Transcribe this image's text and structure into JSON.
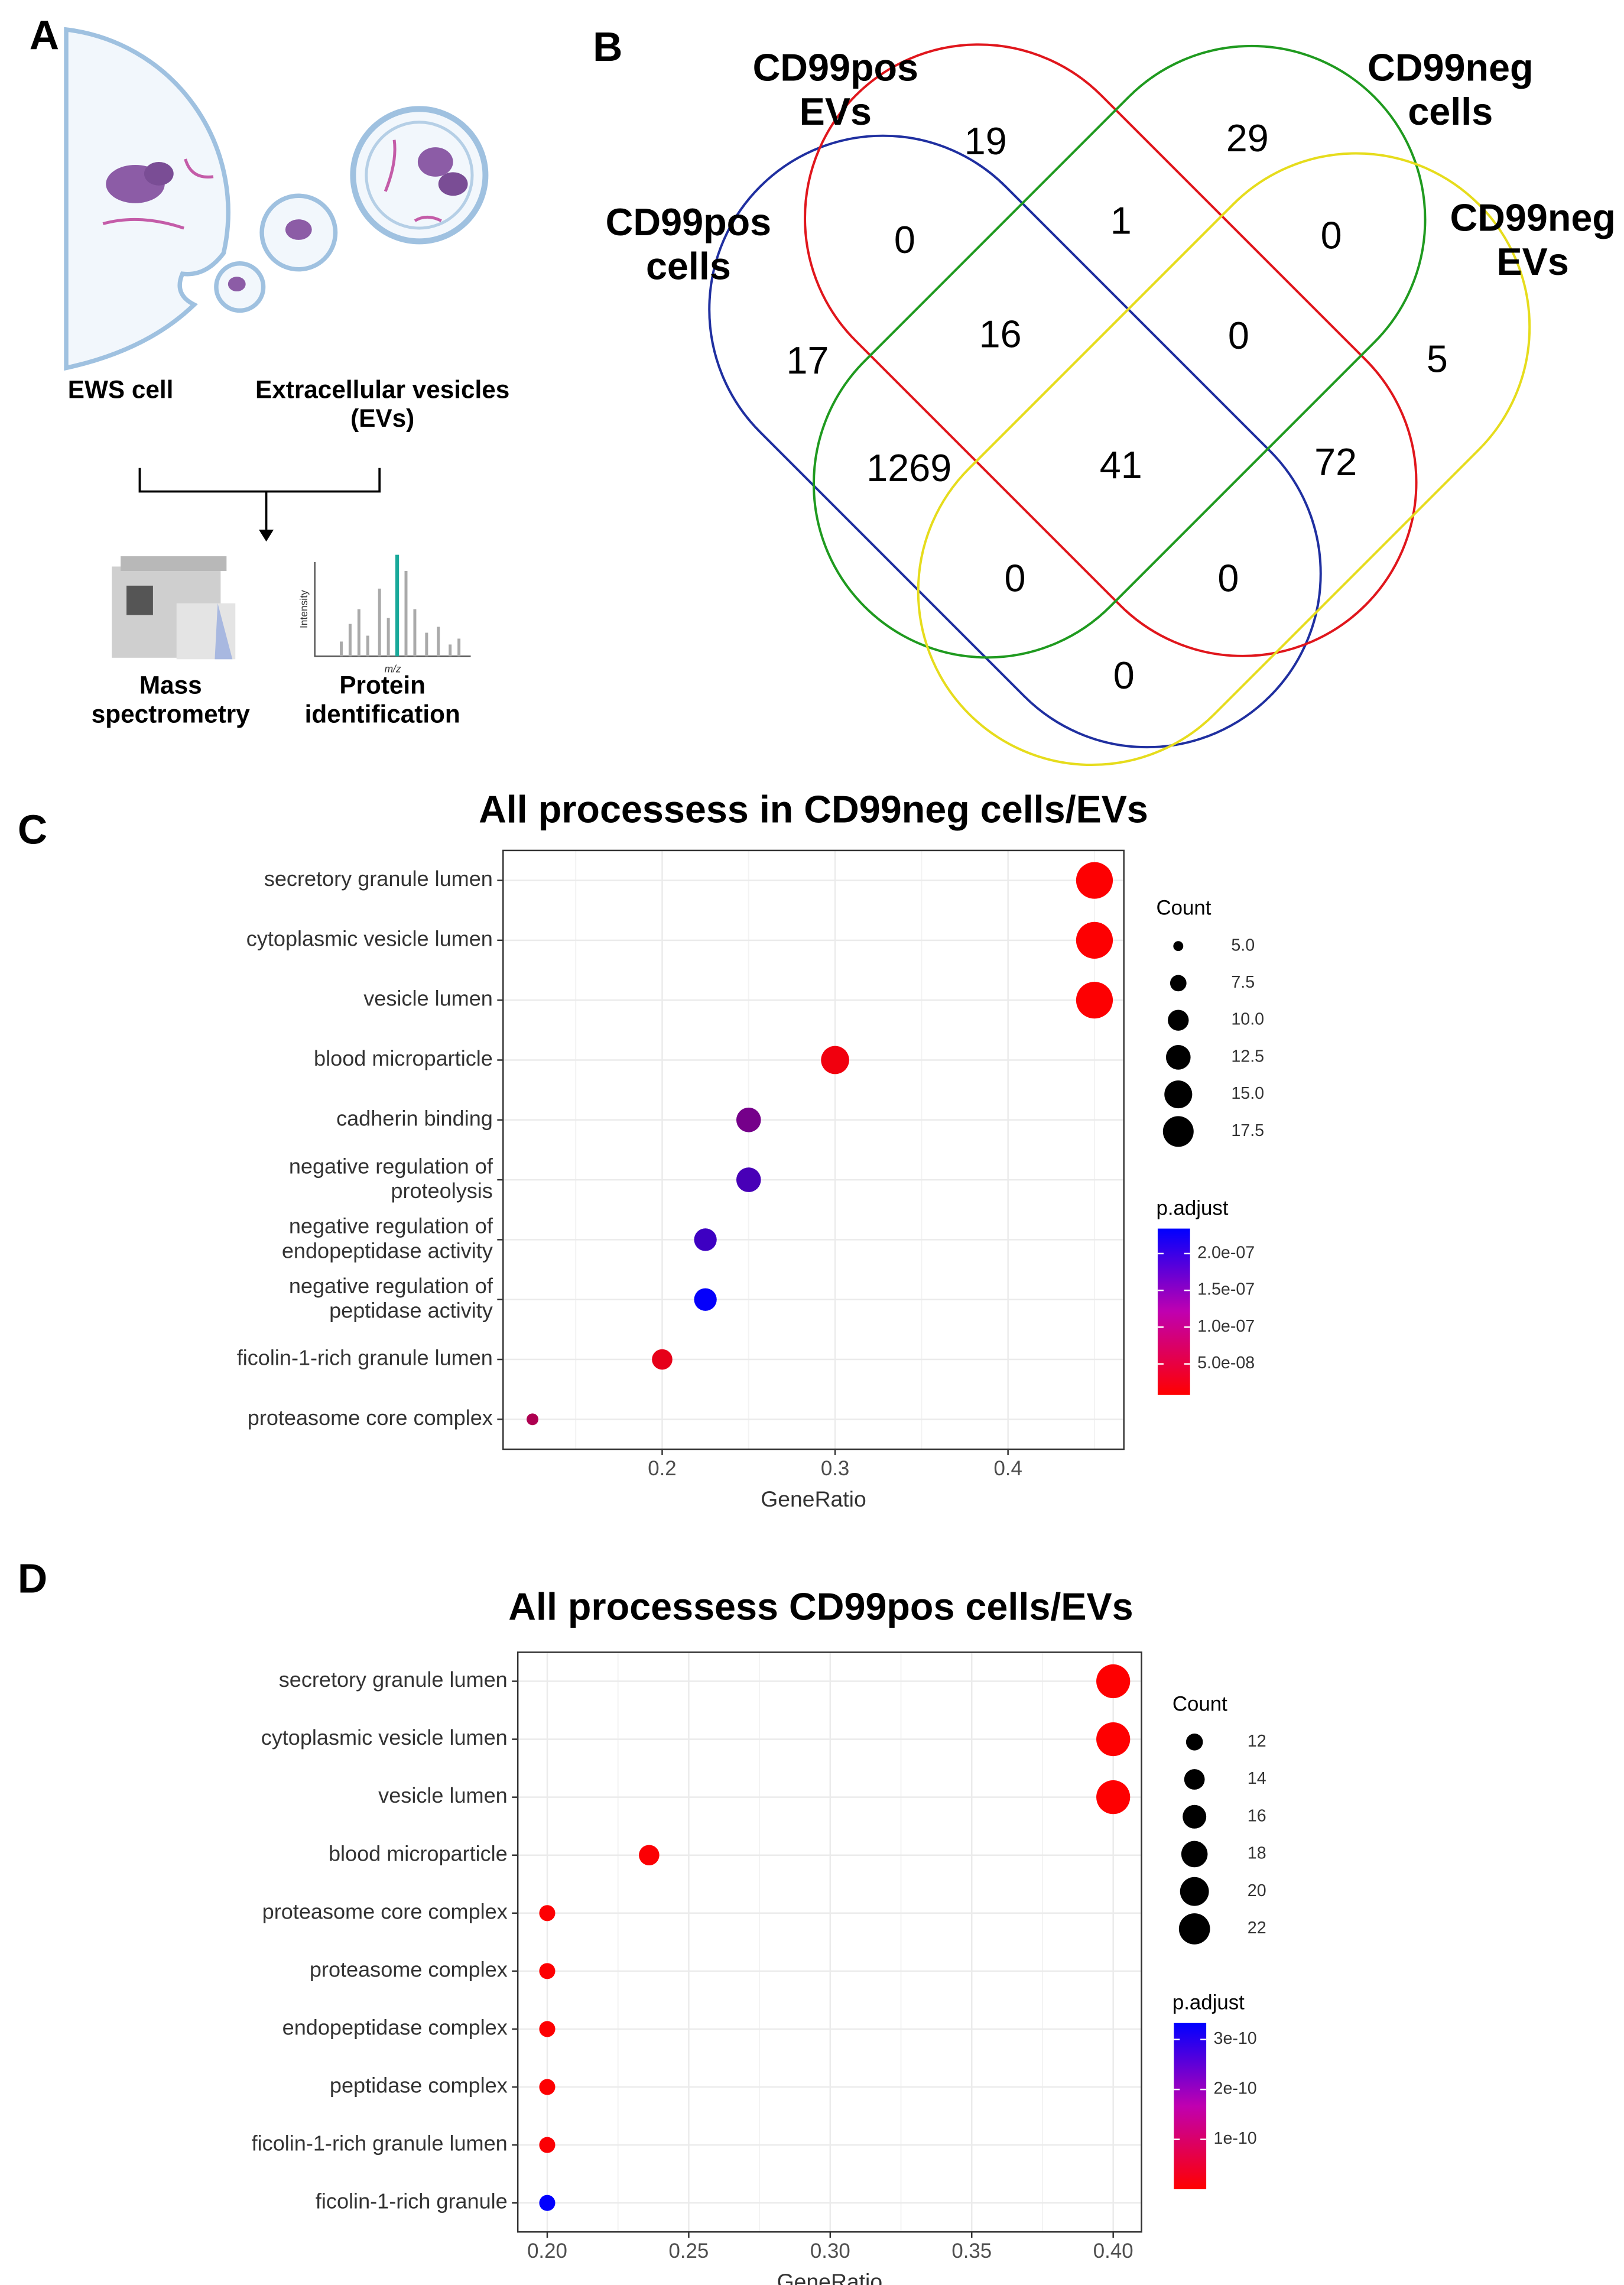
{
  "panel_labels": [
    "A",
    "B",
    "C",
    "D"
  ],
  "schematic": {
    "cell_label": "EWS cell",
    "ev_label": "Extracellular vesicles\n(EVs)",
    "method_labels": [
      "Mass\nspectrometry",
      "Protein\nidentification"
    ],
    "y_axis_label": "Intensity",
    "x_axis_label": "m/z"
  },
  "chart_data": [
    {
      "type": "venn",
      "sets": [
        {
          "name": "CD99pos\ncells",
          "color": "#1f2fa0"
        },
        {
          "name": "CD99pos\nEVs",
          "color": "#e0161c"
        },
        {
          "name": "CD99neg\ncells",
          "color": "#1f9a1f"
        },
        {
          "name": "CD99neg\nEVs",
          "color": "#e6dc1c"
        }
      ],
      "values": [
        19,
        29,
        0,
        1,
        0,
        17,
        16,
        0,
        5,
        1269,
        41,
        72,
        0,
        0,
        0
      ]
    },
    {
      "type": "dot",
      "title": "All processess in CD99neg cells/EVs",
      "xlabel": "GeneRatio",
      "categories": [
        "secretory granule lumen",
        "cytoplasmic vesicle lumen",
        "vesicle lumen",
        "blood microparticle",
        "cadherin binding",
        "negative regulation of\nproteolysis",
        "negative regulation of\nendopeptidase activity",
        "negative regulation of\npeptidase activity",
        "ficolin-1-rich granule lumen",
        "proteasome core complex"
      ],
      "values": [
        0.45,
        0.45,
        0.45,
        0.3,
        0.25,
        0.25,
        0.225,
        0.225,
        0.2,
        0.125
      ],
      "sizes": [
        18,
        18,
        18,
        12,
        10,
        10,
        9,
        9,
        8,
        5
      ],
      "pvalues": [
        1e-08,
        1e-08,
        1e-08,
        2e-08,
        1.3e-07,
        1.7e-07,
        1.8e-07,
        2.3e-07,
        3e-08,
        8e-08
      ],
      "xlim": [
        0.108,
        0.467
      ],
      "xticks": [
        0.2,
        0.3,
        0.4
      ],
      "xticks_minor": [
        0.15,
        0.25,
        0.35,
        0.45
      ],
      "grid": true,
      "size_legend_title": "Count",
      "size_ticks": [
        {
          "value": 5,
          "label": "5.0"
        },
        7.5,
        {
          "value": 10,
          "label": "10.0"
        },
        12.5,
        {
          "value": 15,
          "label": "15.0"
        },
        17.5
      ],
      "sizelim": [
        5,
        18
      ],
      "color_legend_title": "p.adjust",
      "color_ticks": [
        {
          "value": 2e-07,
          "label": "2.0e-07"
        },
        {
          "value": 1.5e-07,
          "label": "1.5e-07"
        },
        {
          "value": 1e-07,
          "label": "1.0e-07"
        },
        {
          "value": 5e-08,
          "label": "5.0e-08"
        }
      ],
      "plim": [
        8e-09,
        2.34e-07
      ],
      "color_low": "#ff0000",
      "color_high": "#0000ff"
    },
    {
      "type": "dot",
      "title": "All processess CD99pos cells/EVs",
      "xlabel": "GeneRatio",
      "categories": [
        "secretory granule lumen",
        "cytoplasmic vesicle lumen",
        "vesicle lumen",
        "blood microparticle",
        "proteasome core complex",
        "proteasome complex",
        "endopeptidase complex",
        "peptidase complex",
        "ficolin-1-rich granule lumen",
        "ficolin-1-rich granule"
      ],
      "values": [
        0.4,
        0.4,
        0.4,
        0.236,
        0.2,
        0.2,
        0.2,
        0.2,
        0.2,
        0.2
      ],
      "sizes": [
        22,
        22,
        22,
        13,
        11,
        11,
        11,
        11,
        11,
        11
      ],
      "pvalues": [
        1e-12,
        1e-12,
        1e-12,
        5e-12,
        3e-12,
        3e-12,
        3e-12,
        3e-12,
        5e-12,
        3.3e-10
      ],
      "xlim": [
        0.1896,
        0.41
      ],
      "xticks": [
        {
          "value": 0.2,
          "label": "0.20"
        },
        0.25,
        {
          "value": 0.3,
          "label": "0.30"
        },
        0.35,
        {
          "value": 0.4,
          "label": "0.40"
        }
      ],
      "xticks_minor": [
        0.225,
        0.275,
        0.325,
        0.375
      ],
      "grid": true,
      "size_legend_title": "Count",
      "size_ticks": [
        12,
        14,
        16,
        18,
        20,
        22
      ],
      "sizelim": [
        10,
        22
      ],
      "color_legend_title": "p.adjust",
      "color_ticks": [
        3e-10,
        2e-10,
        1e-10
      ],
      "plim": [
        1e-13,
        3.33e-10
      ],
      "color_low": "#ff0000",
      "color_high": "#0000ff"
    }
  ]
}
